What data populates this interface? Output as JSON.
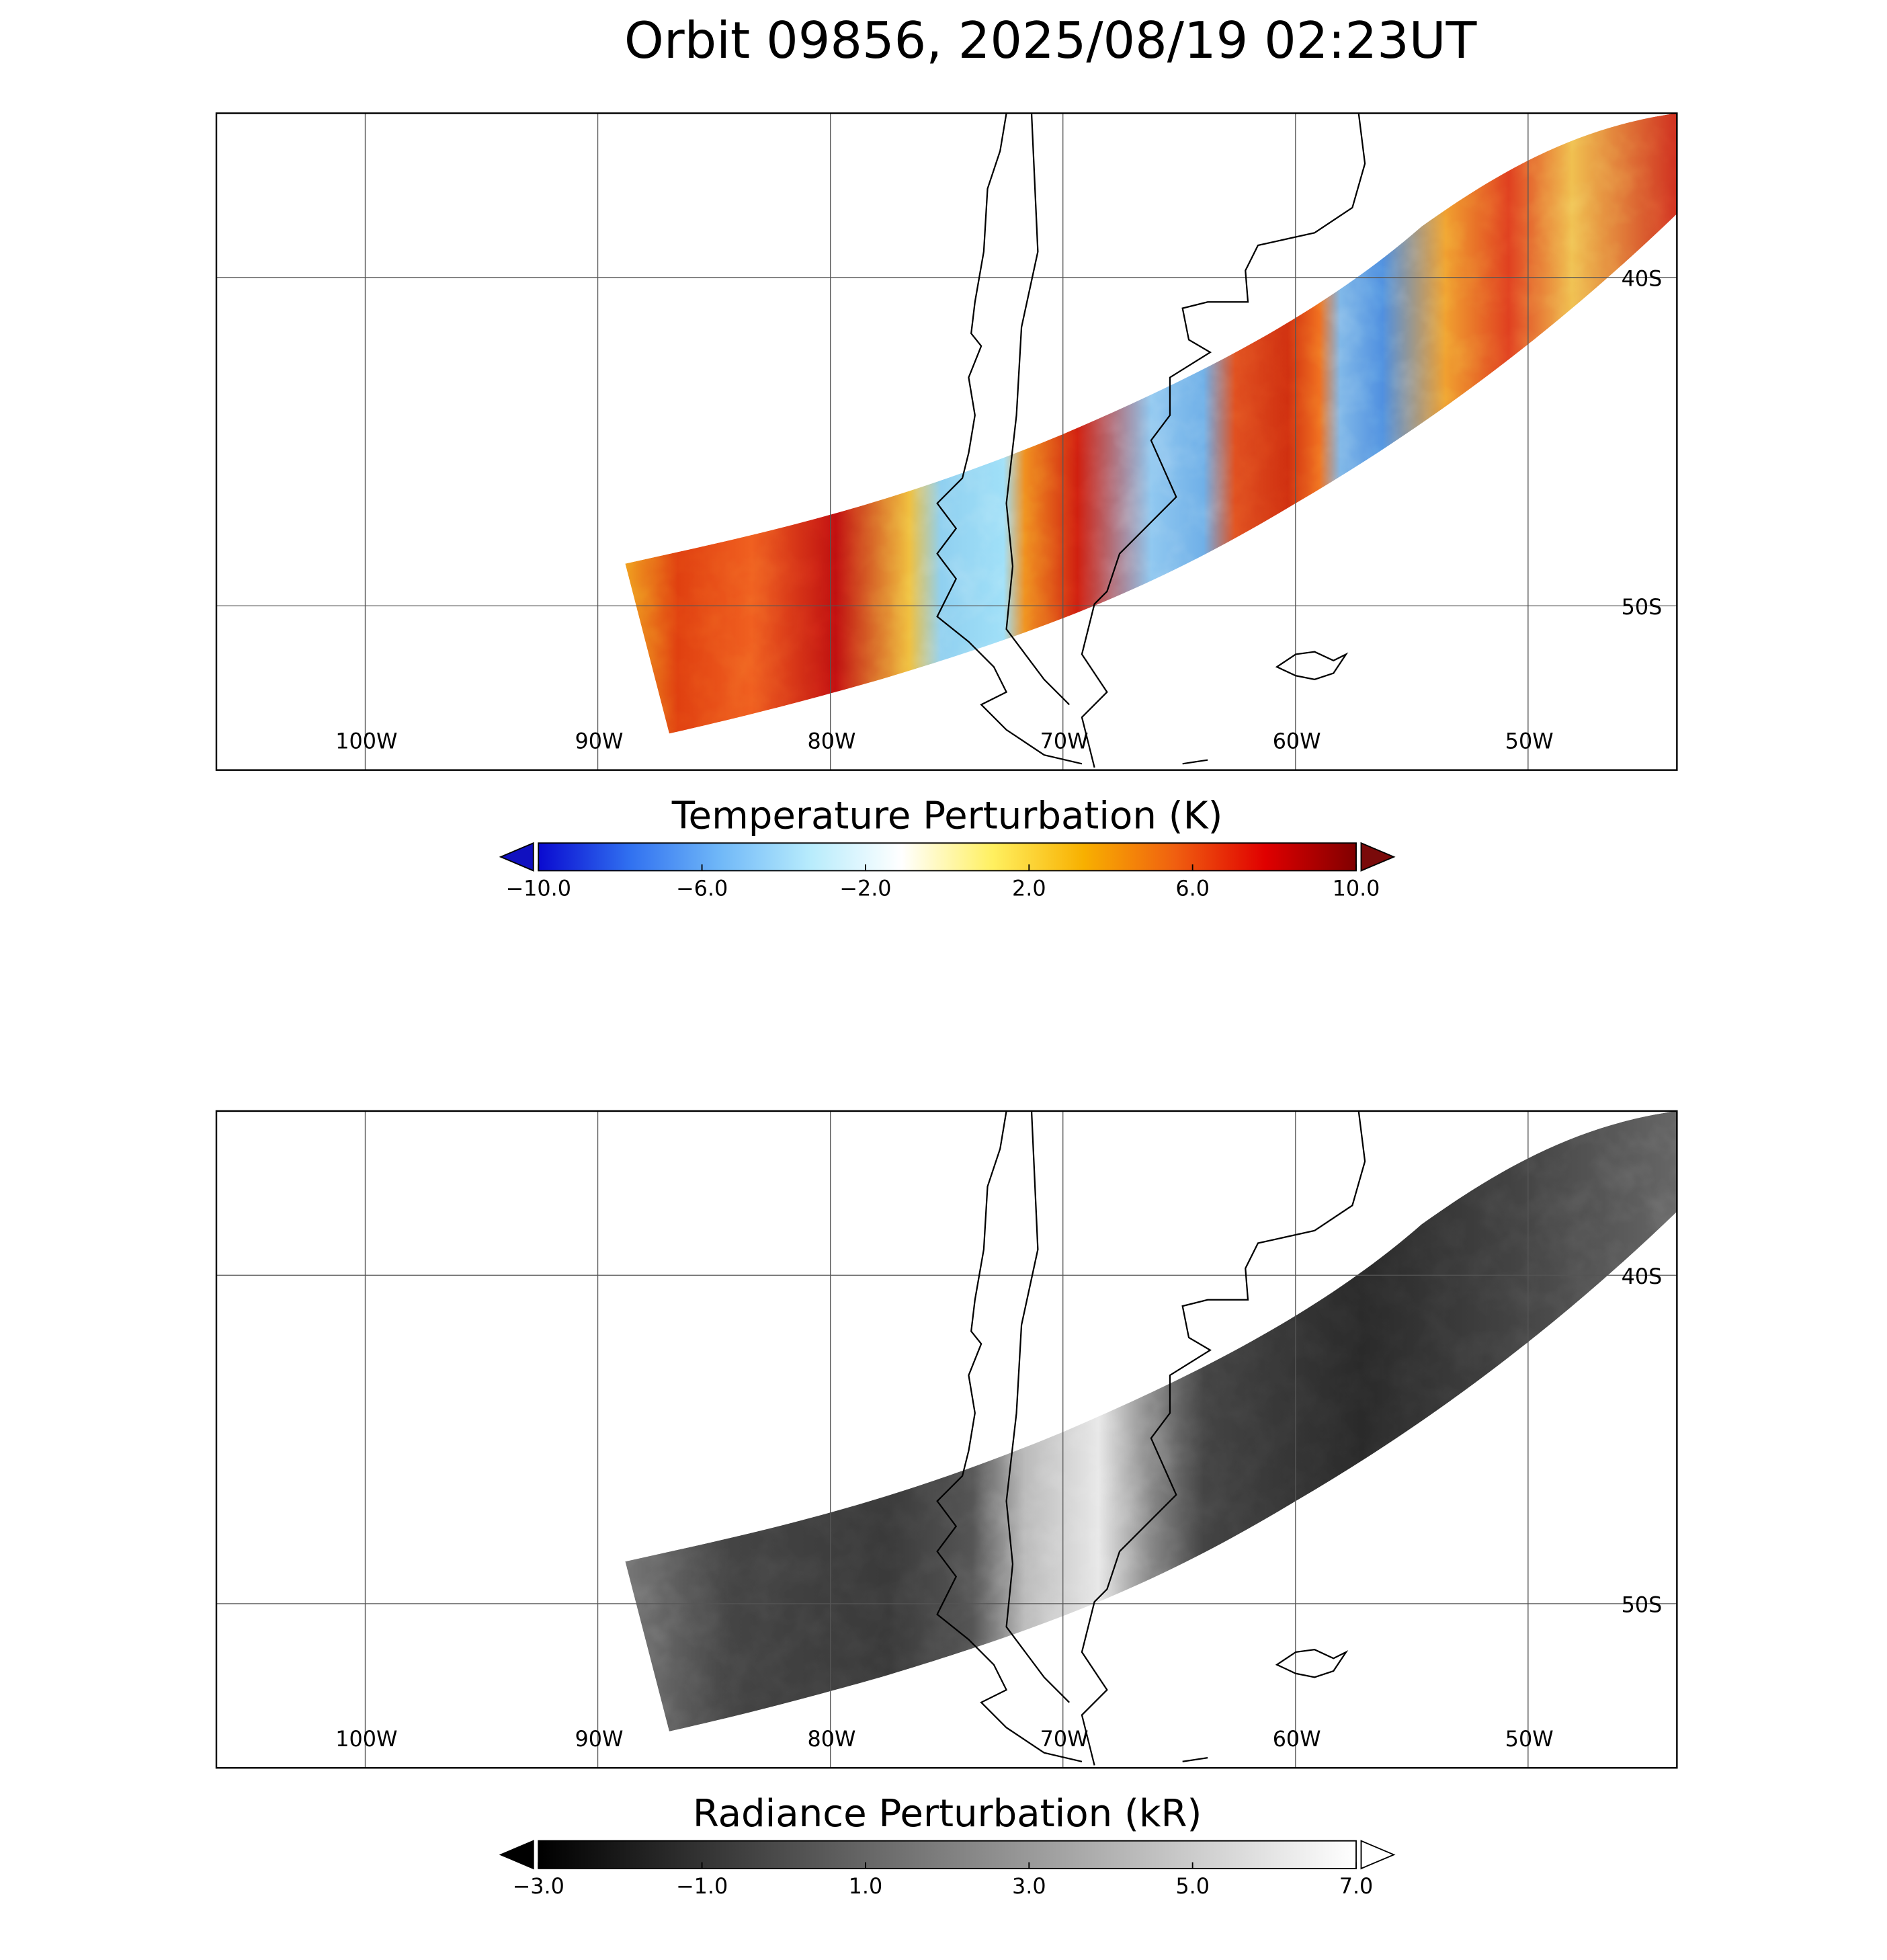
{
  "title": "Orbit 09856, 2025/08/19 02:23UT",
  "panels": [
    {
      "xlim": [
        -106.4,
        -43.6
      ],
      "ylim": [
        -55,
        -35
      ],
      "xticks": [
        {
          "value": -100,
          "label": "100W"
        },
        {
          "value": -90,
          "label": "90W"
        },
        {
          "value": -80,
          "label": "80W"
        },
        {
          "value": -70,
          "label": "70W"
        },
        {
          "value": -60,
          "label": "60W"
        },
        {
          "value": -50,
          "label": "50W"
        }
      ],
      "yticks": [
        {
          "value": -40,
          "label": "40S"
        },
        {
          "value": -50,
          "label": "50S"
        }
      ],
      "colorbar": {
        "title": "Temperature Perturbation (K)",
        "range": [
          -10,
          10
        ],
        "ticks": [
          {
            "value": -10,
            "label": "−10.0"
          },
          {
            "value": -6,
            "label": "−6.0"
          },
          {
            "value": -2,
            "label": "−2.0"
          },
          {
            "value": 2,
            "label": "2.0"
          },
          {
            "value": 6,
            "label": "6.0"
          },
          {
            "value": 10,
            "label": "10.0"
          }
        ],
        "colors": [
          "#0a0ad0",
          "#3070f0",
          "#70b8f8",
          "#b8ecfc",
          "#ffffff",
          "#fff060",
          "#f8b000",
          "#f06010",
          "#e00000",
          "#800000"
        ],
        "extend_colors": [
          "#1010c0",
          "#7a0a0a"
        ]
      }
    },
    {
      "xlim": [
        -106.4,
        -43.6
      ],
      "ylim": [
        -55,
        -35
      ],
      "xticks": [
        {
          "value": -100,
          "label": "100W"
        },
        {
          "value": -90,
          "label": "90W"
        },
        {
          "value": -80,
          "label": "80W"
        },
        {
          "value": -70,
          "label": "70W"
        },
        {
          "value": -60,
          "label": "60W"
        },
        {
          "value": -50,
          "label": "50W"
        }
      ],
      "yticks": [
        {
          "value": -40,
          "label": "40S"
        },
        {
          "value": -50,
          "label": "50S"
        }
      ],
      "colorbar": {
        "title": "Radiance Perturbation (kR)",
        "range": [
          -3,
          7
        ],
        "ticks": [
          {
            "value": -3,
            "label": "−3.0"
          },
          {
            "value": -1,
            "label": "−1.0"
          },
          {
            "value": 1,
            "label": "1.0"
          },
          {
            "value": 3,
            "label": "3.0"
          },
          {
            "value": 5,
            "label": "5.0"
          },
          {
            "value": 7,
            "label": "7.0"
          }
        ],
        "colors": [
          "#000000",
          "#ffffff"
        ],
        "extend_colors": [
          "#000000",
          "#ffffff"
        ]
      }
    }
  ]
}
